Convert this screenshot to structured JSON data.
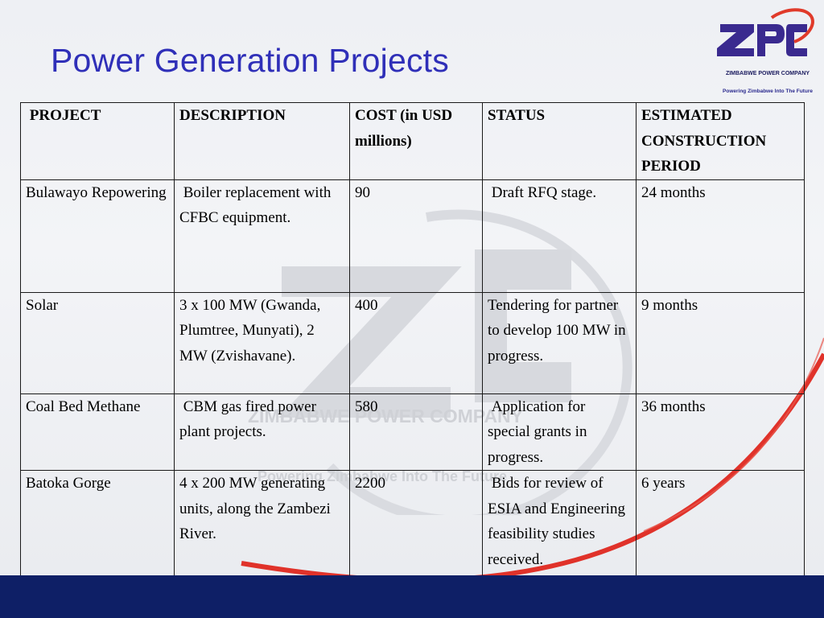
{
  "slide": {
    "title": "Power Generation Projects"
  },
  "logo": {
    "mark": "ZPC",
    "company": "ZIMBABWE POWER COMPANY",
    "tagline": "Powering Zimbabwe Into The Future"
  },
  "watermark": {
    "company": "ZIMBABWE POWER COMPANY",
    "tagline": "Powering Zimbabwe Into The Future"
  },
  "colors": {
    "title": "#2f2fb8",
    "logo_purple": "#3a2a8f",
    "logo_red": "#e03a2a",
    "band": "#0e1f66"
  },
  "table": {
    "headers": {
      "project": " PROJECT",
      "description": "DESCRIPTION",
      "cost": "COST (in USD millions)",
      "status": "STATUS",
      "period": "ESTIMATED CONSTRUCTION PERIOD"
    },
    "rows": [
      {
        "project": "Bulawayo Repowering",
        "description": " Boiler replacement with CFBC equipment.",
        "cost": "90",
        "status": " Draft RFQ stage.",
        "period": "24 months"
      },
      {
        "project": "Solar",
        "description": "3 x 100 MW (Gwanda, Plumtree, Munyati), 2 MW (Zvishavane).",
        "cost": "400",
        "status": "Tendering for partner to develop 100 MW in progress.",
        "period": "9 months"
      },
      {
        "project": "Coal Bed Methane",
        "description": " CBM gas fired power plant projects.",
        "cost": "580",
        "status": " Application for special grants in progress.",
        "period": "36 months"
      },
      {
        "project": "Batoka Gorge",
        "description": "4 x 200 MW generating units, along the Zambezi River.",
        "cost": "2200",
        "status": " Bids for review of ESIA and Engineering feasibility studies received.",
        "period": "6 years"
      }
    ]
  }
}
